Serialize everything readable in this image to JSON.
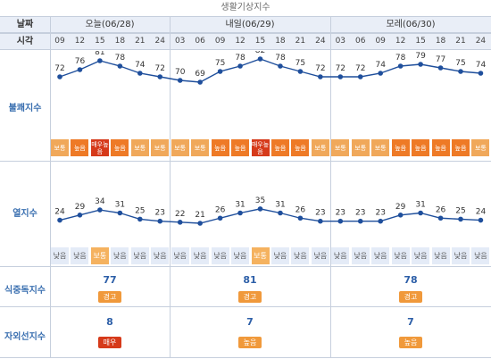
{
  "caption": "생활기상지수",
  "headers": {
    "date_label": "날짜",
    "time_label": "시각",
    "days": [
      "오늘(06/28)",
      "내일(06/29)",
      "모레(06/30)"
    ],
    "hours": [
      "09",
      "12",
      "15",
      "18",
      "21",
      "24",
      "03",
      "06",
      "09",
      "12",
      "15",
      "18",
      "21",
      "24",
      "03",
      "06",
      "09",
      "12",
      "15",
      "18",
      "21",
      "24"
    ]
  },
  "rows": {
    "discomfort_label": "불쾌지수",
    "heat_label": "열지수",
    "food_label": "식중독지수",
    "uv_label": "자외선지수"
  },
  "discomfort": {
    "values": [
      72,
      76,
      81,
      78,
      74,
      72,
      70,
      69,
      75,
      78,
      82,
      78,
      75,
      72,
      72,
      72,
      74,
      78,
      79,
      77,
      75,
      74
    ],
    "levels": [
      "보통",
      "높음",
      "매우높음",
      "높음",
      "보통",
      "보통",
      "보통",
      "보통",
      "높음",
      "높음",
      "매우높음",
      "높음",
      "높음",
      "보통",
      "보통",
      "보통",
      "보통",
      "높음",
      "높음",
      "높음",
      "높음",
      "보통"
    ],
    "level_types": [
      "normal",
      "high",
      "vhigh",
      "high",
      "normal",
      "normal",
      "normal",
      "normal",
      "high",
      "high",
      "vhigh",
      "high",
      "high",
      "normal",
      "normal",
      "normal",
      "normal",
      "high",
      "high",
      "high",
      "high",
      "normal"
    ]
  },
  "heat": {
    "values": [
      24,
      29,
      34,
      31,
      25,
      23,
      22,
      21,
      26,
      31,
      35,
      31,
      26,
      23,
      23,
      23,
      23,
      29,
      31,
      26,
      25,
      24
    ],
    "levels": [
      "낮음",
      "낮음",
      "보통",
      "낮음",
      "낮음",
      "낮음",
      "낮음",
      "낮음",
      "낮음",
      "낮음",
      "보통",
      "낮음",
      "낮음",
      "낮음",
      "낮음",
      "낮음",
      "낮음",
      "낮음",
      "낮음",
      "낮음",
      "낮음",
      "낮음"
    ]
  },
  "food": {
    "days": [
      {
        "value": "77",
        "level": "경고"
      },
      {
        "value": "81",
        "level": "경고"
      },
      {
        "value": "78",
        "level": "경고"
      }
    ]
  },
  "uv": {
    "days": [
      {
        "value": "8",
        "level": "매우",
        "type": "vhigh"
      },
      {
        "value": "7",
        "level": "높음",
        "type": "high"
      },
      {
        "value": "7",
        "level": "높음",
        "type": "high"
      }
    ]
  },
  "colors": {
    "line": "#1f4f9c",
    "normal": "#f0a85a",
    "high": "#ee7a26",
    "vhigh": "#d63a1a"
  }
}
